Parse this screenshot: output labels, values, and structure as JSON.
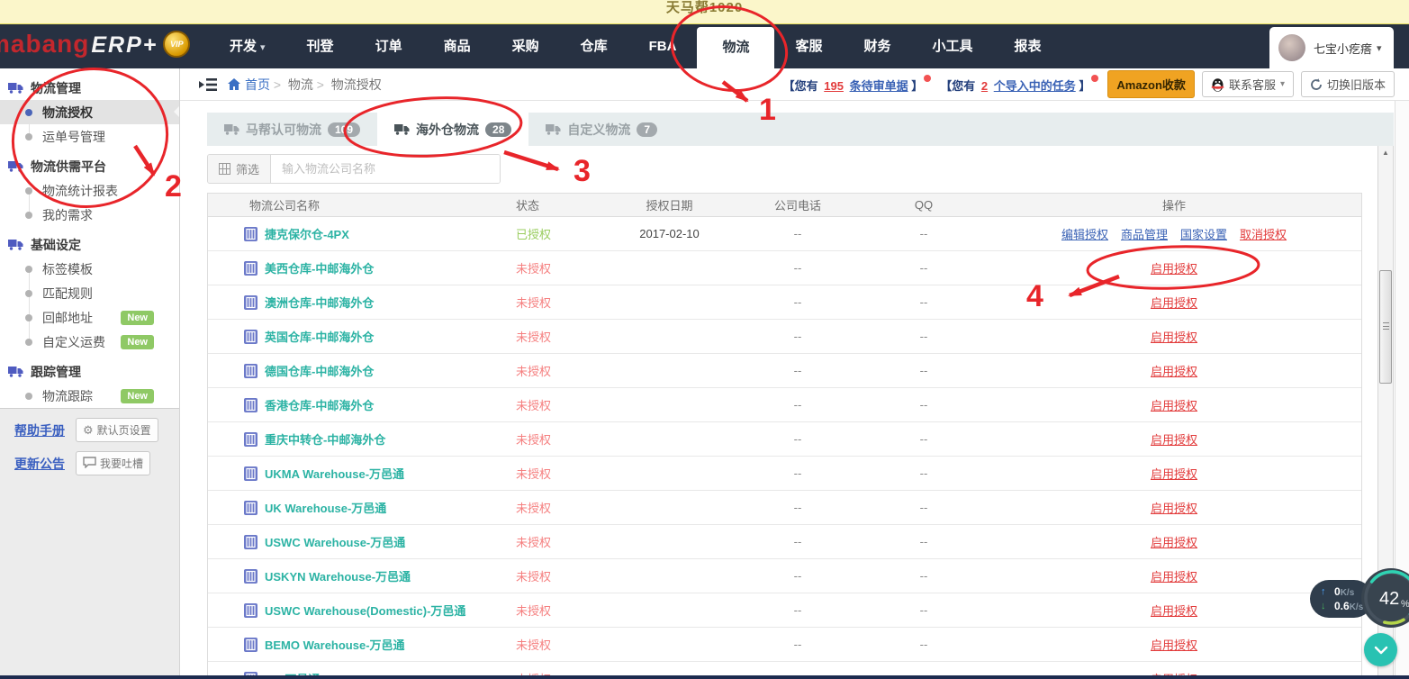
{
  "topbar": {
    "title": "天马帮1020"
  },
  "header": {
    "brand": "mabang",
    "brand_suffix": "ERP+",
    "vip": "VIP",
    "nav": [
      {
        "key": "dev",
        "label": "开发",
        "caret": true
      },
      {
        "key": "publish",
        "label": "刊登"
      },
      {
        "key": "orders",
        "label": "订单"
      },
      {
        "key": "products",
        "label": "商品"
      },
      {
        "key": "purchase",
        "label": "采购"
      },
      {
        "key": "warehouse",
        "label": "仓库"
      },
      {
        "key": "fba",
        "label": "FBA"
      },
      {
        "key": "logistics",
        "label": "物流",
        "active": true
      },
      {
        "key": "service",
        "label": "客服"
      },
      {
        "key": "finance",
        "label": "财务"
      },
      {
        "key": "tools",
        "label": "小工具"
      },
      {
        "key": "reports",
        "label": "报表"
      }
    ],
    "user": {
      "name": "七宝小疙瘩"
    }
  },
  "breadcrumb": [
    "首页",
    "物流",
    "物流授权"
  ],
  "notices": {
    "n1": {
      "open": "【您有",
      "count": "195",
      "link": "条待审单据",
      "close": "】"
    },
    "n2": {
      "open": "【您有",
      "count": "2",
      "link": "个导入中的任务",
      "close": "】"
    },
    "amazon": "Amazon收款",
    "contact": "联系客服",
    "switch_old": "切换旧版本"
  },
  "sidebar": {
    "groups": [
      {
        "title": "物流管理",
        "items": [
          {
            "label": "物流授权",
            "active": true
          },
          {
            "label": "运单号管理"
          }
        ]
      },
      {
        "title": "物流供需平台",
        "items": [
          {
            "label": "物流统计报表"
          },
          {
            "label": "我的需求"
          }
        ]
      },
      {
        "title": "基础设定",
        "items": [
          {
            "label": "标签模板"
          },
          {
            "label": "匹配规则"
          },
          {
            "label": "回邮地址",
            "badge": "New"
          },
          {
            "label": "自定义运费",
            "badge": "New"
          }
        ]
      },
      {
        "title": "跟踪管理",
        "items": [
          {
            "label": "物流跟踪",
            "badge": "New"
          }
        ]
      }
    ],
    "footer": {
      "help": "帮助手册",
      "default_page": "默认页设置",
      "update": "更新公告",
      "feedback": "我要吐槽"
    }
  },
  "tabs": [
    {
      "label": "马帮认可物流",
      "count": "109"
    },
    {
      "label": "海外仓物流",
      "count": "28",
      "active": true
    },
    {
      "label": "自定义物流",
      "count": "7"
    }
  ],
  "filter": {
    "button": "筛选",
    "placeholder": "输入物流公司名称"
  },
  "table": {
    "headers": [
      "物流公司名称",
      "状态",
      "授权日期",
      "公司电话",
      "QQ",
      "操作"
    ],
    "rows": [
      {
        "name": "捷克保尔仓-4PX",
        "status": "已授权",
        "authorized": true,
        "date": "2017-02-10",
        "phone": "--",
        "qq": "--",
        "ops": [
          {
            "label": "编辑授权",
            "type": "blue"
          },
          {
            "label": "商品管理",
            "type": "blue"
          },
          {
            "label": "国家设置",
            "type": "blue"
          },
          {
            "label": "取消授权",
            "type": "red"
          }
        ]
      },
      {
        "name": "美西仓库-中邮海外仓",
        "status": "未授权",
        "authorized": false,
        "date": "",
        "phone": "--",
        "qq": "--",
        "ops": [
          {
            "label": "启用授权",
            "type": "red"
          }
        ]
      },
      {
        "name": "澳洲仓库-中邮海外仓",
        "status": "未授权",
        "authorized": false,
        "date": "",
        "phone": "--",
        "qq": "--",
        "ops": [
          {
            "label": "启用授权",
            "type": "red"
          }
        ]
      },
      {
        "name": "英国仓库-中邮海外仓",
        "status": "未授权",
        "authorized": false,
        "date": "",
        "phone": "--",
        "qq": "--",
        "ops": [
          {
            "label": "启用授权",
            "type": "red"
          }
        ]
      },
      {
        "name": "德国仓库-中邮海外仓",
        "status": "未授权",
        "authorized": false,
        "date": "",
        "phone": "--",
        "qq": "--",
        "ops": [
          {
            "label": "启用授权",
            "type": "red"
          }
        ]
      },
      {
        "name": "香港仓库-中邮海外仓",
        "status": "未授权",
        "authorized": false,
        "date": "",
        "phone": "--",
        "qq": "--",
        "ops": [
          {
            "label": "启用授权",
            "type": "red"
          }
        ]
      },
      {
        "name": "重庆中转仓-中邮海外仓",
        "status": "未授权",
        "authorized": false,
        "date": "",
        "phone": "--",
        "qq": "--",
        "ops": [
          {
            "label": "启用授权",
            "type": "red"
          }
        ]
      },
      {
        "name": "UKMA Warehouse-万邑通",
        "status": "未授权",
        "authorized": false,
        "date": "",
        "phone": "--",
        "qq": "--",
        "ops": [
          {
            "label": "启用授权",
            "type": "red"
          }
        ]
      },
      {
        "name": "UK Warehouse-万邑通",
        "status": "未授权",
        "authorized": false,
        "date": "",
        "phone": "--",
        "qq": "--",
        "ops": [
          {
            "label": "启用授权",
            "type": "red"
          }
        ]
      },
      {
        "name": "USWC Warehouse-万邑通",
        "status": "未授权",
        "authorized": false,
        "date": "",
        "phone": "--",
        "qq": "--",
        "ops": [
          {
            "label": "启用授权",
            "type": "red"
          }
        ]
      },
      {
        "name": "USKYN Warehouse-万邑通",
        "status": "未授权",
        "authorized": false,
        "date": "",
        "phone": "--",
        "qq": "--",
        "ops": [
          {
            "label": "启用授权",
            "type": "red"
          }
        ]
      },
      {
        "name": "USWC Warehouse(Domestic)-万邑通",
        "status": "未授权",
        "authorized": false,
        "date": "",
        "phone": "--",
        "qq": "--",
        "ops": [
          {
            "label": "启用授权",
            "type": "red"
          }
        ]
      },
      {
        "name": "BEMO Warehouse-万邑通",
        "status": "未授权",
        "authorized": false,
        "date": "",
        "phone": "--",
        "qq": "--",
        "ops": [
          {
            "label": "启用授权",
            "type": "red"
          }
        ]
      },
      {
        "name": "US-万邑通",
        "status": "未授权",
        "authorized": false,
        "date": "",
        "phone": "--",
        "qq": "--",
        "ops": [
          {
            "label": "启用授权",
            "type": "red"
          }
        ]
      }
    ]
  },
  "annotations": {
    "step1": "1",
    "step2": "2",
    "step3": "3",
    "step4": "4"
  },
  "widgets": {
    "up_speed": "0",
    "down_speed": "0.6",
    "speed_unit": "K/s",
    "progress": "42",
    "progress_unit": "%"
  },
  "colors": {
    "accent_red": "#e8252a",
    "teal": "#2cb3a4",
    "ok_green": "#9acd5f",
    "warn_red": "#f57f7f",
    "navy": "#273142",
    "amazon_orange": "#f0a322"
  }
}
